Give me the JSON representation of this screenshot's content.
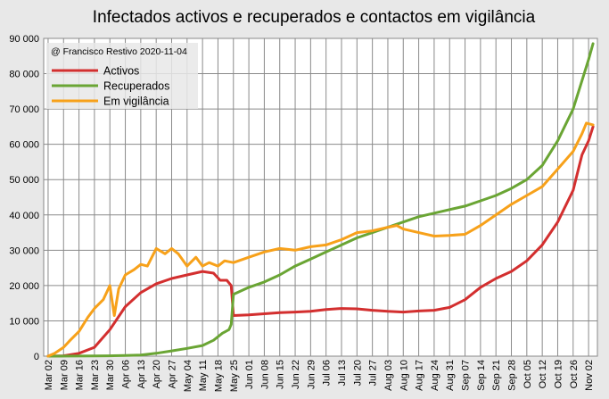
{
  "chart_data": {
    "type": "line",
    "title": "Infectados activos e recuperados e contactos em vigilância",
    "annotation": "@ Francisco Restivo 2020-11-04",
    "xlabel": "",
    "ylabel": "",
    "ylim": [
      0,
      90000
    ],
    "yticks": [
      "0",
      "10 000",
      "20 000",
      "30 000",
      "40 000",
      "50 000",
      "60 000",
      "70 000",
      "80 000",
      "90 000"
    ],
    "xticks": [
      "Mar 02",
      "Mar 09",
      "Mar 16",
      "Mar 23",
      "Mar 30",
      "Apr 06",
      "Apr 13",
      "Apr 20",
      "Apr 27",
      "May 04",
      "May 11",
      "May 18",
      "May 25",
      "Jun 01",
      "Jun 08",
      "Jun 15",
      "Jun 22",
      "Jun 29",
      "Jul 06",
      "Jul 13",
      "Jul 20",
      "Jul 27",
      "Aug 03",
      "Aug 10",
      "Aug 17",
      "Aug 24",
      "Aug 31",
      "Sep 07",
      "Sep 14",
      "Sep 21",
      "Sep 28",
      "Oct 05",
      "Oct 12",
      "Oct 19",
      "Oct 26",
      "Nov 02"
    ],
    "grid": true,
    "legend_position": "top-left",
    "series": [
      {
        "name": "Activos",
        "color": "#d32f2f",
        "x": [
          "2020-03-02",
          "2020-03-09",
          "2020-03-16",
          "2020-03-23",
          "2020-03-30",
          "2020-04-06",
          "2020-04-13",
          "2020-04-20",
          "2020-04-27",
          "2020-05-04",
          "2020-05-11",
          "2020-05-16",
          "2020-05-19",
          "2020-05-22",
          "2020-05-24",
          "2020-05-25",
          "2020-06-01",
          "2020-06-08",
          "2020-06-15",
          "2020-06-22",
          "2020-06-29",
          "2020-07-06",
          "2020-07-13",
          "2020-07-20",
          "2020-07-27",
          "2020-08-03",
          "2020-08-10",
          "2020-08-17",
          "2020-08-24",
          "2020-08-31",
          "2020-09-07",
          "2020-09-14",
          "2020-09-21",
          "2020-09-28",
          "2020-10-05",
          "2020-10-12",
          "2020-10-19",
          "2020-10-26",
          "2020-10-30",
          "2020-11-02",
          "2020-11-04"
        ],
        "values": [
          0,
          100,
          800,
          2500,
          7500,
          14000,
          18000,
          20500,
          22000,
          23000,
          24000,
          23500,
          21500,
          21500,
          20000,
          11500,
          11700,
          12000,
          12300,
          12500,
          12700,
          13200,
          13500,
          13400,
          13000,
          12700,
          12500,
          12800,
          13000,
          13800,
          16000,
          19500,
          22000,
          24000,
          27000,
          31500,
          38000,
          47000,
          57000,
          61000,
          65000
        ]
      },
      {
        "name": "Recuperados",
        "color": "#6aa534",
        "x": [
          "2020-03-02",
          "2020-03-23",
          "2020-03-30",
          "2020-04-06",
          "2020-04-13",
          "2020-04-20",
          "2020-04-27",
          "2020-05-04",
          "2020-05-11",
          "2020-05-16",
          "2020-05-20",
          "2020-05-23",
          "2020-05-24",
          "2020-05-25",
          "2020-06-01",
          "2020-06-08",
          "2020-06-15",
          "2020-06-22",
          "2020-06-29",
          "2020-07-06",
          "2020-07-13",
          "2020-07-20",
          "2020-07-27",
          "2020-08-03",
          "2020-08-10",
          "2020-08-17",
          "2020-08-24",
          "2020-08-31",
          "2020-09-07",
          "2020-09-14",
          "2020-09-21",
          "2020-09-28",
          "2020-10-05",
          "2020-10-12",
          "2020-10-19",
          "2020-10-26",
          "2020-11-02",
          "2020-11-04"
        ],
        "values": [
          0,
          50,
          100,
          200,
          300,
          800,
          1500,
          2200,
          3000,
          4500,
          6500,
          7500,
          9000,
          17500,
          19500,
          21000,
          23000,
          25500,
          27500,
          29500,
          31500,
          33500,
          35000,
          36500,
          38000,
          39500,
          40500,
          41500,
          42500,
          44000,
          45500,
          47500,
          50000,
          54000,
          61000,
          70000,
          84000,
          88500
        ]
      },
      {
        "name": "Em vigilância",
        "color": "#f7a11a",
        "x": [
          "2020-03-02",
          "2020-03-05",
          "2020-03-09",
          "2020-03-12",
          "2020-03-16",
          "2020-03-20",
          "2020-03-23",
          "2020-03-27",
          "2020-03-30",
          "2020-04-01",
          "2020-04-03",
          "2020-04-06",
          "2020-04-10",
          "2020-04-13",
          "2020-04-16",
          "2020-04-20",
          "2020-04-24",
          "2020-04-27",
          "2020-04-30",
          "2020-05-04",
          "2020-05-08",
          "2020-05-11",
          "2020-05-14",
          "2020-05-18",
          "2020-05-21",
          "2020-05-25",
          "2020-06-01",
          "2020-06-08",
          "2020-06-15",
          "2020-06-22",
          "2020-06-29",
          "2020-07-06",
          "2020-07-13",
          "2020-07-20",
          "2020-07-27",
          "2020-08-03",
          "2020-08-07",
          "2020-08-10",
          "2020-08-17",
          "2020-08-24",
          "2020-08-31",
          "2020-09-07",
          "2020-09-14",
          "2020-09-21",
          "2020-09-28",
          "2020-10-05",
          "2020-10-12",
          "2020-10-19",
          "2020-10-26",
          "2020-10-30",
          "2020-11-01",
          "2020-11-04"
        ],
        "values": [
          0,
          800,
          2500,
          4500,
          7000,
          11000,
          13500,
          16000,
          20000,
          11500,
          19000,
          23000,
          24500,
          26000,
          25500,
          30500,
          29000,
          30500,
          29000,
          25500,
          28000,
          25500,
          26500,
          25500,
          27000,
          26500,
          28000,
          29500,
          30500,
          30000,
          31000,
          31500,
          33000,
          35000,
          35500,
          36500,
          37000,
          36000,
          35000,
          34000,
          34200,
          34500,
          37000,
          40000,
          43000,
          45500,
          48000,
          53000,
          58000,
          63000,
          66000,
          65500
        ]
      }
    ]
  }
}
